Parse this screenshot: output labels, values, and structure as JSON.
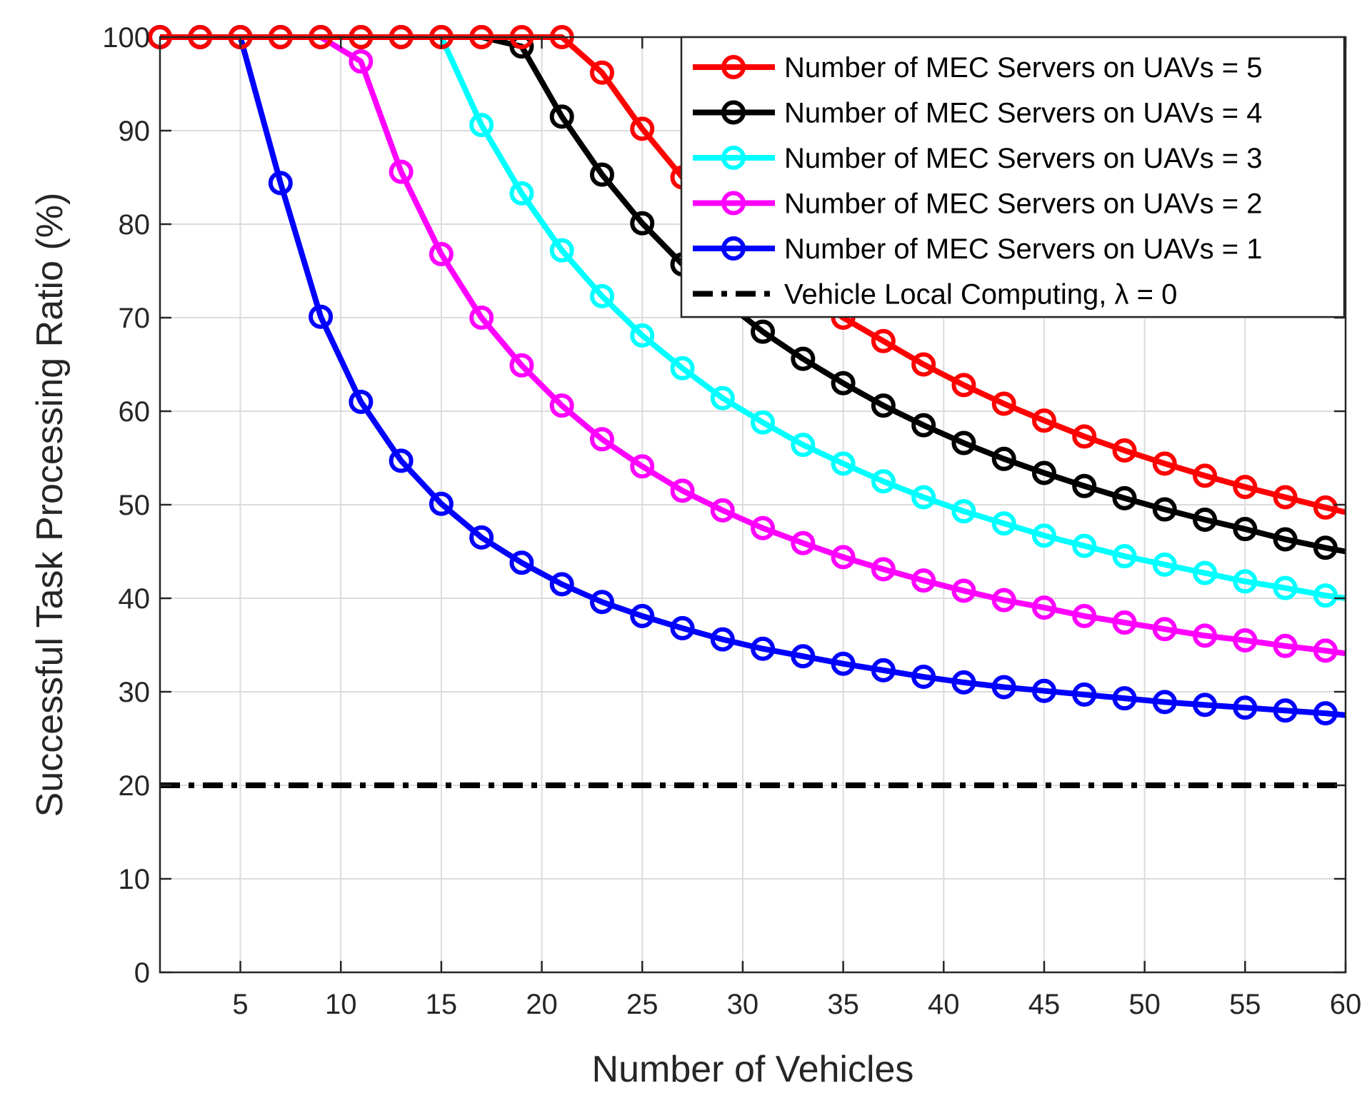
{
  "chart_data": {
    "type": "line",
    "xlabel": "Number of Vehicles",
    "ylabel": "Successful Task Processing Ratio (%)",
    "xlim": [
      1,
      60
    ],
    "ylim": [
      0,
      100
    ],
    "xticks": [
      5,
      10,
      15,
      20,
      25,
      30,
      35,
      40,
      45,
      50,
      55,
      60
    ],
    "yticks": [
      0,
      10,
      20,
      30,
      40,
      50,
      60,
      70,
      80,
      90,
      100
    ],
    "grid": true,
    "legend_position": "top-right",
    "x": [
      1,
      3,
      5,
      7,
      9,
      11,
      13,
      15,
      17,
      19,
      21,
      23,
      25,
      27,
      29,
      31,
      33,
      35,
      37,
      39,
      41,
      43,
      45,
      47,
      49,
      51,
      53,
      55,
      57,
      59,
      60
    ],
    "series": [
      {
        "name": "Number of MEC Servers on UAVs = 5",
        "color": "#ff0000",
        "marker": "circle",
        "values": [
          100,
          100,
          100,
          100,
          100,
          100,
          100,
          100,
          100,
          100,
          100,
          96.2,
          90.2,
          85.0,
          80.5,
          76.5,
          73.0,
          70.0,
          67.5,
          65.0,
          62.8,
          60.8,
          59.0,
          57.3,
          55.8,
          54.4,
          53.1,
          51.9,
          50.8,
          49.7,
          49.2
        ]
      },
      {
        "name": "Number of MEC Servers on UAVs = 4",
        "color": "#000000",
        "marker": "circle",
        "values": [
          100,
          100,
          100,
          100,
          100,
          100,
          100,
          100,
          100,
          99.0,
          91.5,
          85.3,
          80.1,
          75.7,
          71.9,
          68.5,
          65.6,
          63.0,
          60.6,
          58.5,
          56.6,
          54.9,
          53.4,
          52.0,
          50.7,
          49.5,
          48.4,
          47.4,
          46.3,
          45.4,
          45.0
        ]
      },
      {
        "name": "Number of MEC Servers on UAVs = 3",
        "color": "#00ffff",
        "marker": "circle",
        "values": [
          100,
          100,
          100,
          100,
          100,
          100,
          100,
          100,
          90.6,
          83.3,
          77.2,
          72.3,
          68.1,
          64.6,
          61.4,
          58.8,
          56.4,
          54.4,
          52.5,
          50.8,
          49.3,
          48.0,
          46.7,
          45.6,
          44.5,
          43.6,
          42.7,
          41.8,
          41.1,
          40.3,
          40.0
        ]
      },
      {
        "name": "Number of MEC Servers on UAVs = 2",
        "color": "#ff00ff",
        "marker": "circle",
        "values": [
          100,
          100,
          100,
          100,
          100,
          97.4,
          85.6,
          76.8,
          70.0,
          64.9,
          60.6,
          57.0,
          54.1,
          51.5,
          49.4,
          47.5,
          45.9,
          44.4,
          43.1,
          41.9,
          40.8,
          39.8,
          39.0,
          38.1,
          37.4,
          36.7,
          36.0,
          35.5,
          34.9,
          34.4,
          34.1
        ]
      },
      {
        "name": "Number of MEC Servers on UAVs = 1",
        "color": "#0000ff",
        "marker": "circle",
        "values": [
          100,
          100,
          100,
          84.4,
          70.1,
          61.0,
          54.7,
          50.1,
          46.5,
          43.8,
          41.5,
          39.6,
          38.1,
          36.8,
          35.6,
          34.6,
          33.8,
          33.0,
          32.3,
          31.6,
          31.0,
          30.5,
          30.1,
          29.7,
          29.3,
          28.9,
          28.6,
          28.3,
          28.0,
          27.7,
          27.5
        ]
      },
      {
        "name": "Vehicle Local Computing, λ = 0",
        "color": "#000000",
        "marker": "none",
        "linestyle": "dashdot",
        "values": [
          20,
          20,
          20,
          20,
          20,
          20,
          20,
          20,
          20,
          20,
          20,
          20,
          20,
          20,
          20,
          20,
          20,
          20,
          20,
          20,
          20,
          20,
          20,
          20,
          20,
          20,
          20,
          20,
          20,
          20,
          20
        ]
      }
    ]
  }
}
